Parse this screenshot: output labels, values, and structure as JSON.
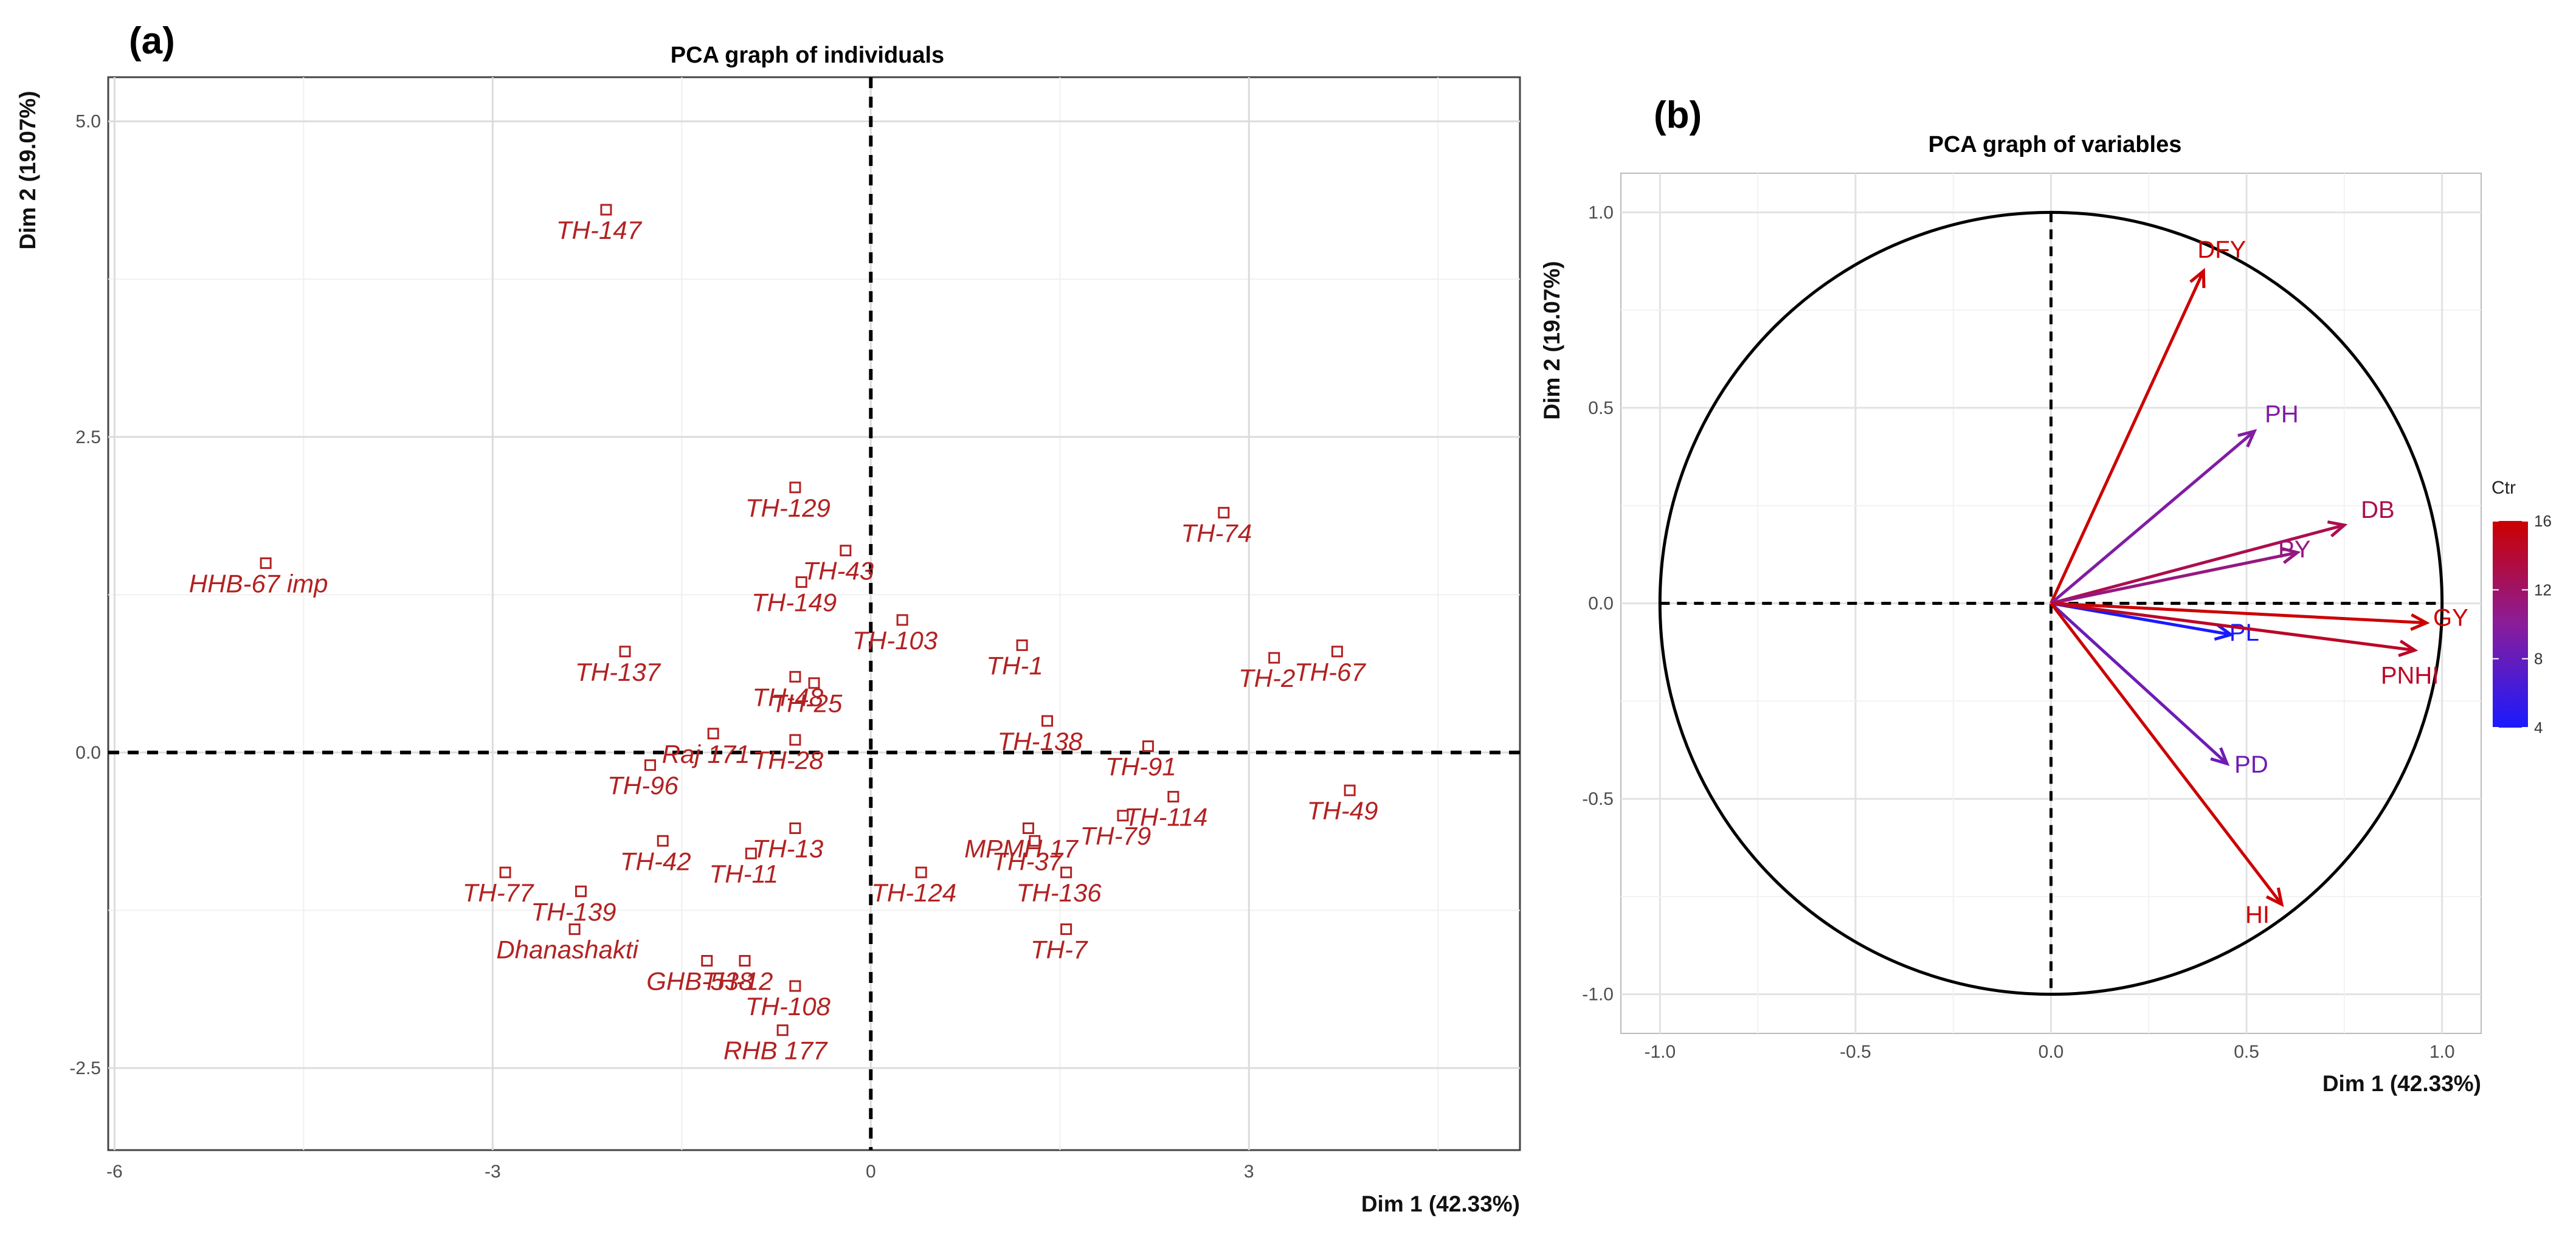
{
  "panel_a": {
    "tag": "(a)",
    "title": "PCA graph of individuals",
    "xlabel": "Dim 1 (42.33%)",
    "ylabel": "Dim 2 (19.07%)"
  },
  "panel_b": {
    "tag": "(b)",
    "title": "PCA graph of variables",
    "xlabel": "Dim 1 (42.33%)",
    "ylabel": "Dim 2 (19.07%)",
    "legend_title": "Ctr",
    "legend_ticks": [
      "16",
      "12",
      "8",
      "4"
    ]
  },
  "chart_data": [
    {
      "type": "scatter",
      "title": "PCA graph of individuals",
      "xlabel": "Dim 1 (42.33%)",
      "ylabel": "Dim 2 (19.07%)",
      "xlim": [
        -6.05,
        5.15
      ],
      "ylim": [
        -3.15,
        5.35
      ],
      "xticks": [
        -6,
        -3,
        0,
        3
      ],
      "yticks": [
        -2.5,
        0.0,
        2.5,
        5.0
      ],
      "xtick_labels": [
        "-6",
        "-3",
        "0",
        "3"
      ],
      "ytick_labels": [
        "-2.5",
        "0.0",
        "2.5",
        "5.0"
      ],
      "grid": true,
      "marker_color": "#b22222",
      "points": [
        {
          "label": "TH-147",
          "x": -2.1,
          "y": 4.3
        },
        {
          "label": "HHB-67 imp",
          "x": -4.8,
          "y": 1.5
        },
        {
          "label": "TH-129",
          "x": -0.6,
          "y": 2.1
        },
        {
          "label": "TH-43",
          "x": -0.2,
          "y": 1.6
        },
        {
          "label": "TH-74",
          "x": 2.8,
          "y": 1.9
        },
        {
          "label": "TH-149",
          "x": -0.55,
          "y": 1.35
        },
        {
          "label": "TH-137",
          "x": -1.95,
          "y": 0.8
        },
        {
          "label": "TH-48",
          "x": -0.6,
          "y": 0.6
        },
        {
          "label": "TH-103",
          "x": 0.25,
          "y": 1.05
        },
        {
          "label": "TH-1",
          "x": 1.2,
          "y": 0.85
        },
        {
          "label": "TH-2",
          "x": 3.2,
          "y": 0.75
        },
        {
          "label": "TH-67",
          "x": 3.7,
          "y": 0.8
        },
        {
          "label": "Raj 171",
          "x": -1.25,
          "y": 0.15
        },
        {
          "label": "TH-25",
          "x": -0.45,
          "y": 0.55
        },
        {
          "label": "TH-138",
          "x": 1.4,
          "y": 0.25
        },
        {
          "label": "TH-91",
          "x": 2.2,
          "y": 0.05
        },
        {
          "label": "TH-96",
          "x": -1.75,
          "y": -0.1
        },
        {
          "label": "TH-28",
          "x": -0.6,
          "y": 0.1
        },
        {
          "label": "TH-114",
          "x": 2.4,
          "y": -0.35
        },
        {
          "label": "TH-49",
          "x": 3.8,
          "y": -0.3
        },
        {
          "label": "TH-42",
          "x": -1.65,
          "y": -0.7
        },
        {
          "label": "TH-13",
          "x": -0.6,
          "y": -0.6
        },
        {
          "label": "MPMH 17",
          "x": 1.25,
          "y": -0.6
        },
        {
          "label": "TH-79",
          "x": 2.0,
          "y": -0.5
        },
        {
          "label": "TH-77",
          "x": -2.9,
          "y": -0.95
        },
        {
          "label": "TH-11",
          "x": -0.95,
          "y": -0.8
        },
        {
          "label": "TH-37",
          "x": 1.3,
          "y": -0.7
        },
        {
          "label": "TH-139",
          "x": -2.3,
          "y": -1.1
        },
        {
          "label": "TH-124",
          "x": 0.4,
          "y": -0.95
        },
        {
          "label": "TH-136",
          "x": 1.55,
          "y": -0.95
        },
        {
          "label": "Dhanashakti",
          "x": -2.35,
          "y": -1.4
        },
        {
          "label": "GHB-538",
          "x": -1.3,
          "y": -1.65
        },
        {
          "label": "TH-12",
          "x": -1.0,
          "y": -1.65
        },
        {
          "label": "TH-7",
          "x": 1.55,
          "y": -1.4
        },
        {
          "label": "TH-108",
          "x": -0.6,
          "y": -1.85
        },
        {
          "label": "RHB 177",
          "x": -0.7,
          "y": -2.2
        }
      ]
    },
    {
      "type": "scatter",
      "title": "PCA graph of variables",
      "xlabel": "Dim 1 (42.33%)",
      "ylabel": "Dim 2 (19.07%)",
      "xlim": [
        -1.1,
        1.1
      ],
      "ylim": [
        -1.1,
        1.1
      ],
      "xticks": [
        -1.0,
        -0.5,
        0.0,
        0.5,
        1.0
      ],
      "yticks": [
        -1.0,
        -0.5,
        0.0,
        0.5,
        1.0
      ],
      "xtick_labels": [
        "-1.0",
        "-0.5",
        "0.0",
        "0.5",
        "1.0"
      ],
      "ytick_labels": [
        "-1.0",
        "-0.5",
        "0.0",
        "0.5",
        "1.0"
      ],
      "grid": true,
      "correlation_circle": true,
      "legend": {
        "title": "Ctr",
        "range": [
          4,
          16
        ],
        "low_color": "#1a1aff",
        "high_color": "#cc0000",
        "placement": "right"
      },
      "vectors": [
        {
          "label": "DFY",
          "x": 0.39,
          "y": 0.85,
          "ctr": 16.5
        },
        {
          "label": "PH",
          "x": 0.52,
          "y": 0.44,
          "ctr": 9.5
        },
        {
          "label": "DB",
          "x": 0.75,
          "y": 0.2,
          "ctr": 13
        },
        {
          "label": "PY",
          "x": 0.63,
          "y": 0.13,
          "ctr": 11
        },
        {
          "label": "GY",
          "x": 0.96,
          "y": -0.05,
          "ctr": 16
        },
        {
          "label": "PL",
          "x": 0.46,
          "y": -0.08,
          "ctr": 4
        },
        {
          "label": "PNHI",
          "x": 0.93,
          "y": -0.12,
          "ctr": 14.5
        },
        {
          "label": "PD",
          "x": 0.45,
          "y": -0.41,
          "ctr": 8.5
        },
        {
          "label": "HI",
          "x": 0.59,
          "y": -0.77,
          "ctr": 16
        }
      ]
    }
  ]
}
